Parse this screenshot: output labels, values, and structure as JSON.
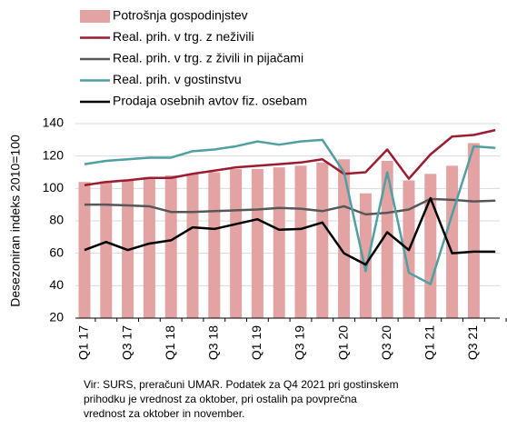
{
  "chart_data": {
    "type": "bar_line",
    "y_axis_label": "Desezoniran indeks 2010=100",
    "categories": [
      "Q1 17",
      null,
      "Q3 17",
      null,
      "Q1 18",
      null,
      "Q3 18",
      null,
      "Q1 19",
      null,
      "Q3 19",
      null,
      "Q1 20",
      null,
      "Q3 20",
      null,
      "Q1 21",
      null,
      "Q3 21",
      null
    ],
    "series": [
      {
        "name": "Potrošnja gospodinjstev",
        "type": "bar",
        "color": "#e3a3a3",
        "values": [
          104,
          104.5,
          105,
          107,
          108,
          109,
          110,
          112,
          112,
          113,
          114,
          116,
          118,
          97,
          117,
          105,
          109,
          114,
          128,
          null
        ]
      },
      {
        "name": "Real. prih. v trg. z neživili",
        "type": "line",
        "color": "#9b1b30",
        "values": [
          102,
          104,
          105,
          106.5,
          106.5,
          109,
          111,
          113,
          114,
          115,
          116,
          118,
          109,
          110,
          124,
          106,
          121,
          132,
          133,
          136
        ]
      },
      {
        "name": "Real. prih. v trg. z živili in pijačami",
        "type": "line",
        "color": "#575757",
        "values": [
          90,
          90,
          89.5,
          89,
          85.5,
          85.5,
          86,
          86.5,
          87,
          88,
          87.5,
          86,
          89,
          84,
          85,
          87,
          93.5,
          93,
          92,
          92.5
        ]
      },
      {
        "name": "Real. prih. v gostinstvu",
        "type": "line",
        "color": "#4f9fa3",
        "values": [
          115,
          117,
          118,
          119,
          119,
          123,
          124,
          126,
          129,
          127,
          129,
          130,
          110,
          49,
          110,
          48,
          41,
          84,
          126,
          125
        ]
      },
      {
        "name": "Prodaja osebnih avtov fiz. osebam",
        "type": "line",
        "color": "#000000",
        "values": [
          62,
          67,
          62,
          66,
          68,
          76,
          75,
          78,
          81,
          74.5,
          75,
          79,
          60,
          53,
          73,
          62,
          94,
          60,
          61,
          61
        ]
      }
    ],
    "ylim": [
      20,
      140
    ],
    "yticks": [
      20,
      40,
      60,
      80,
      100,
      120,
      140
    ],
    "grid": true,
    "note": [
      "Vir: SURS, preračuni UMAR. Podatek za Q4 2021 pri gostinskem",
      "prihodku je vrednost za oktober, pri ostalih pa povprečna",
      "vrednost za oktober in november."
    ]
  }
}
